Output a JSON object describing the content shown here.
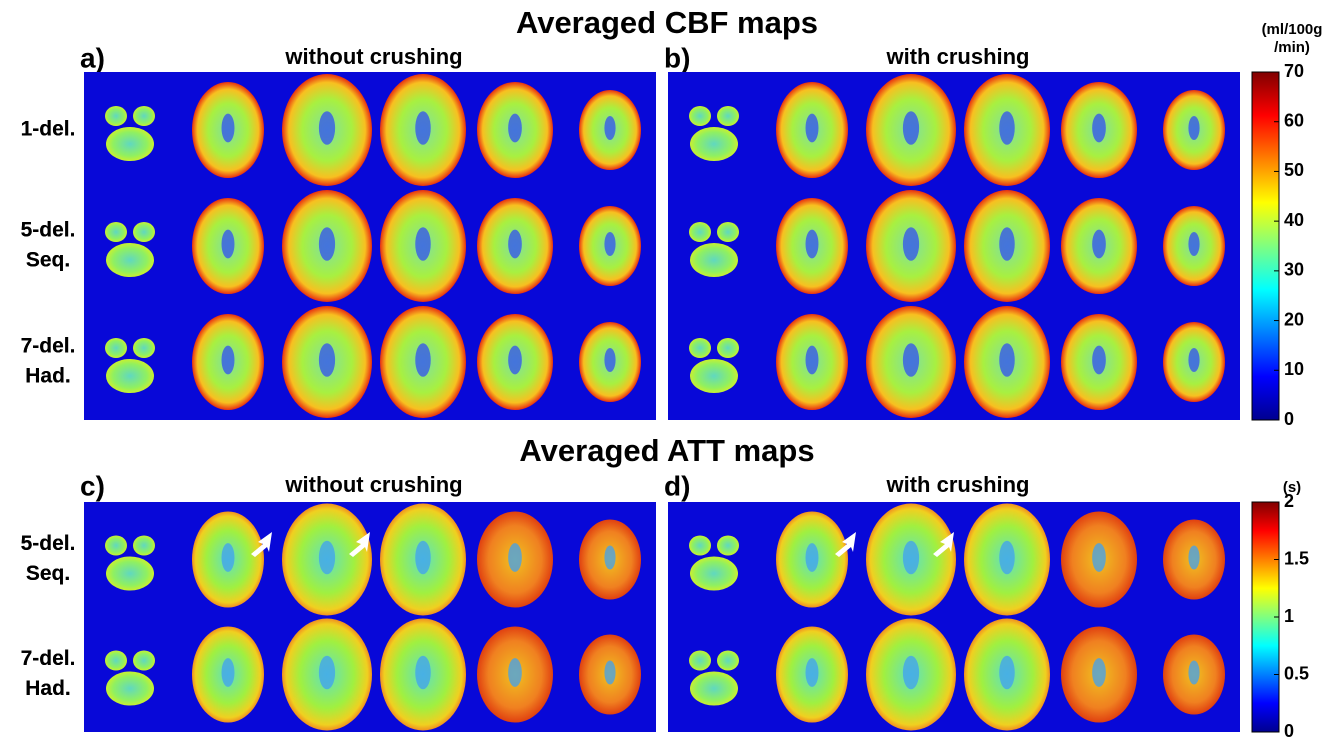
{
  "top": {
    "title": "Averaged CBF maps",
    "panels": [
      {
        "label": "a)",
        "subtitle": "without crushing"
      },
      {
        "label": "b)",
        "subtitle": "with crushing"
      }
    ],
    "rows": [
      [
        "1-del."
      ],
      [
        "5-del.",
        "Seq."
      ],
      [
        "7-del.",
        "Had."
      ]
    ],
    "colorbar": {
      "unit": [
        "(ml/100g",
        "/min)"
      ],
      "range": [
        0,
        70
      ],
      "ticks": [
        0,
        10,
        20,
        30,
        40,
        50,
        60,
        70
      ]
    }
  },
  "bottom": {
    "title": "Averaged ATT maps",
    "panels": [
      {
        "label": "c)",
        "subtitle": "without crushing"
      },
      {
        "label": "d)",
        "subtitle": "with crushing"
      }
    ],
    "rows": [
      [
        "5-del.",
        "Seq."
      ],
      [
        "7-del.",
        "Had."
      ]
    ],
    "colorbar": {
      "unit": [
        "(s)"
      ],
      "range": [
        0,
        2
      ],
      "ticks": [
        0,
        0.5,
        1,
        1.5,
        2
      ]
    }
  }
}
